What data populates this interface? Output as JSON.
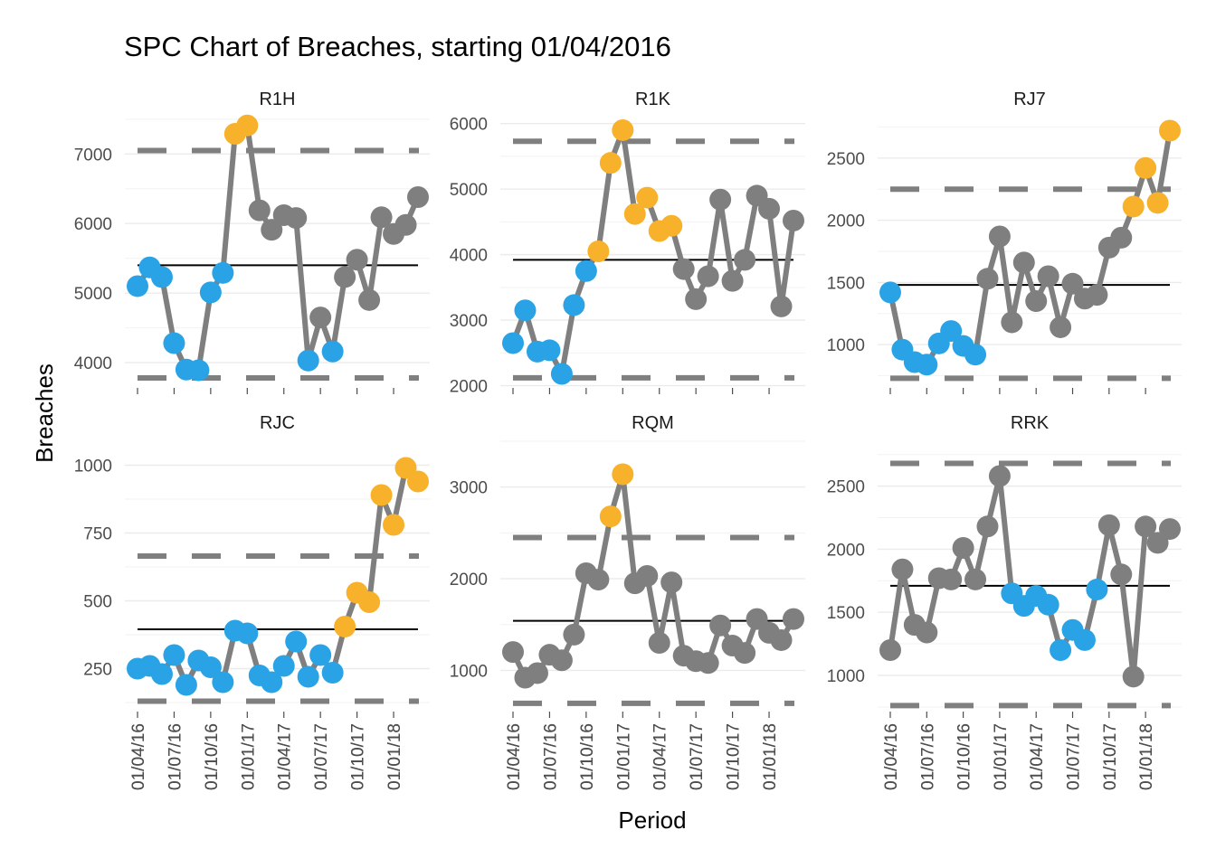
{
  "chart_data": {
    "type": "line",
    "title": "SPC Chart of Breaches, starting 01/04/2016",
    "xlabel": "Period",
    "ylabel": "Breaches",
    "x_tick_labels": [
      "01/04/16",
      "01/07/16",
      "01/10/16",
      "01/01/17",
      "01/04/17",
      "01/07/17",
      "01/10/17",
      "01/01/18"
    ],
    "periods": [
      "2016-04",
      "2016-05",
      "2016-06",
      "2016-07",
      "2016-08",
      "2016-09",
      "2016-10",
      "2016-11",
      "2016-12",
      "2017-01",
      "2017-02",
      "2017-03",
      "2017-04",
      "2017-05",
      "2017-06",
      "2017-07",
      "2017-08",
      "2017-09",
      "2017-10",
      "2017-11",
      "2017-12",
      "2018-01",
      "2018-02",
      "2018-03"
    ],
    "legend_colors": {
      "normal": "#7f7f7f",
      "below_mean_run": "#29a3e6",
      "above_limit": "#f7b12a",
      "mean_line": "#000000",
      "control_limit": "#7f7f7f"
    },
    "panels": [
      {
        "name": "R1H",
        "yticks": [
          4000,
          5000,
          6000,
          7000
        ],
        "ylim": [
          3650,
          7550
        ],
        "mean": 5400,
        "ucl": 7050,
        "lcl": 3780,
        "values": [
          5100,
          5370,
          5230,
          4280,
          3900,
          3890,
          5010,
          5290,
          7290,
          7410,
          6190,
          5910,
          6120,
          6080,
          4030,
          4650,
          4160,
          5230,
          5480,
          4900,
          6090,
          5850,
          5980,
          6380
        ],
        "status": [
          "b",
          "b",
          "b",
          "b",
          "b",
          "b",
          "b",
          "b",
          "o",
          "o",
          "g",
          "g",
          "g",
          "g",
          "b",
          "g",
          "b",
          "g",
          "g",
          "g",
          "g",
          "g",
          "g",
          "g"
        ]
      },
      {
        "name": "R1K",
        "yticks": [
          2000,
          3000,
          4000,
          5000,
          6000
        ],
        "ylim": [
          1980,
          6120
        ],
        "mean": 3920,
        "ucl": 5730,
        "lcl": 2120,
        "values": [
          2650,
          3150,
          2520,
          2540,
          2180,
          3230,
          3750,
          4050,
          5400,
          5900,
          4620,
          4870,
          4360,
          4440,
          3780,
          3320,
          3670,
          4840,
          3600,
          3920,
          4900,
          4700,
          3210,
          4520
        ],
        "status": [
          "b",
          "b",
          "b",
          "b",
          "b",
          "b",
          "b",
          "o",
          "o",
          "o",
          "o",
          "o",
          "o",
          "o",
          "g",
          "g",
          "g",
          "g",
          "g",
          "g",
          "g",
          "g",
          "g",
          "g"
        ]
      },
      {
        "name": "RJ7",
        "yticks": [
          1000,
          1500,
          2000,
          2500
        ],
        "ylim": [
          660,
          2840
        ],
        "mean": 1480,
        "ucl": 2250,
        "lcl": 730,
        "values": [
          1420,
          960,
          860,
          840,
          1010,
          1110,
          990,
          920,
          1530,
          1870,
          1180,
          1660,
          1350,
          1550,
          1140,
          1490,
          1370,
          1400,
          1780,
          1860,
          2110,
          2420,
          2140,
          2720
        ],
        "status": [
          "b",
          "b",
          "b",
          "b",
          "b",
          "b",
          "b",
          "b",
          "g",
          "g",
          "g",
          "g",
          "g",
          "g",
          "g",
          "g",
          "g",
          "g",
          "g",
          "g",
          "o",
          "o",
          "o",
          "o"
        ]
      },
      {
        "name": "RJC",
        "yticks": [
          250,
          500,
          750,
          1000
        ],
        "ylim": [
          95,
          1095
        ],
        "mean": 395,
        "ucl": 665,
        "lcl": 130,
        "values": [
          250,
          260,
          230,
          300,
          190,
          280,
          255,
          200,
          390,
          380,
          225,
          200,
          260,
          350,
          220,
          300,
          235,
          405,
          530,
          495,
          890,
          780,
          990,
          940
        ],
        "status": [
          "b",
          "b",
          "b",
          "b",
          "b",
          "b",
          "b",
          "b",
          "b",
          "b",
          "b",
          "b",
          "b",
          "b",
          "b",
          "b",
          "b",
          "o",
          "o",
          "o",
          "o",
          "o",
          "o",
          "o"
        ]
      },
      {
        "name": "RQM",
        "yticks": [
          1000,
          2000,
          3000
        ],
        "ylim": [
          560,
          3520
        ],
        "mean": 1540,
        "ucl": 2450,
        "lcl": 640,
        "values": [
          1200,
          920,
          970,
          1170,
          1110,
          1390,
          2060,
          1990,
          2680,
          3140,
          1950,
          2030,
          1300,
          1960,
          1160,
          1100,
          1080,
          1490,
          1270,
          1190,
          1560,
          1410,
          1330,
          1560
        ],
        "status": [
          "g",
          "g",
          "g",
          "g",
          "g",
          "g",
          "g",
          "g",
          "o",
          "o",
          "g",
          "g",
          "g",
          "g",
          "g",
          "g",
          "g",
          "g",
          "g",
          "g",
          "g",
          "g",
          "g",
          "g"
        ]
      },
      {
        "name": "RRK",
        "yticks": [
          1000,
          1500,
          2000,
          2500
        ],
        "ylim": [
          720,
          2870
        ],
        "mean": 1710,
        "ucl": 2680,
        "lcl": 760,
        "values": [
          1200,
          1840,
          1400,
          1340,
          1770,
          1760,
          2010,
          1760,
          2180,
          2580,
          1650,
          1550,
          1630,
          1560,
          1200,
          1360,
          1280,
          1680,
          2190,
          1800,
          990,
          2180,
          2050,
          2160
        ],
        "status": [
          "g",
          "g",
          "g",
          "g",
          "g",
          "g",
          "g",
          "g",
          "g",
          "g",
          "b",
          "b",
          "b",
          "b",
          "b",
          "b",
          "b",
          "b",
          "g",
          "g",
          "g",
          "g",
          "g",
          "g"
        ]
      }
    ]
  }
}
